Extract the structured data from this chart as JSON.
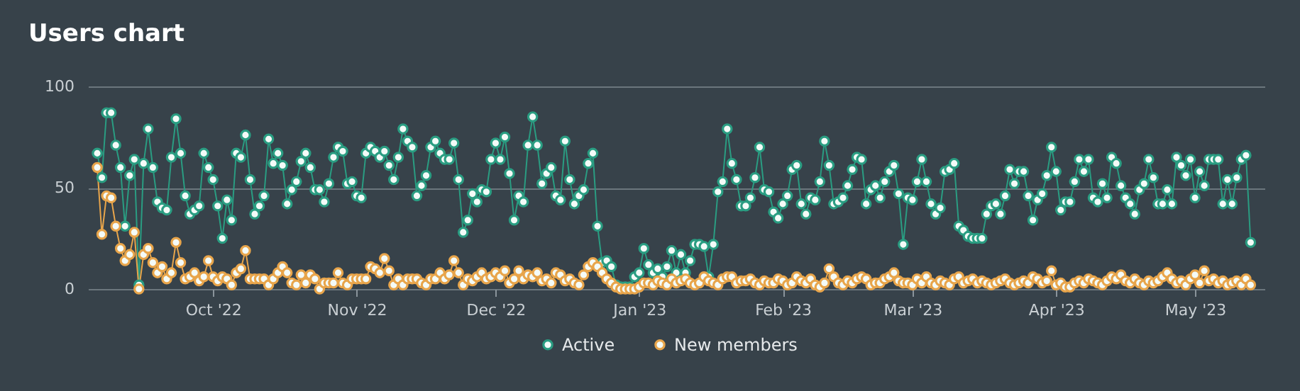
{
  "chart_data": {
    "type": "line",
    "title": "Users chart",
    "x": [
      "2022-09-06",
      "2022-09-07",
      "2022-09-08",
      "2022-09-09",
      "2022-09-10",
      "2022-09-11",
      "2022-09-12",
      "2022-09-13",
      "2022-09-14",
      "2022-09-15",
      "2022-09-16",
      "2022-09-17",
      "2022-09-18",
      "2022-09-19",
      "2022-09-20",
      "2022-09-21",
      "2022-09-22",
      "2022-09-23",
      "2022-09-24",
      "2022-09-25",
      "2022-09-26",
      "2022-09-27",
      "2022-09-28",
      "2022-09-29",
      "2022-09-30",
      "2022-10-01",
      "2022-10-02",
      "2022-10-03",
      "2022-10-04",
      "2022-10-05",
      "2022-10-06",
      "2022-10-07",
      "2022-10-08",
      "2022-10-09",
      "2022-10-10",
      "2022-10-11",
      "2022-10-12",
      "2022-10-13",
      "2022-10-14",
      "2022-10-15",
      "2022-10-16",
      "2022-10-17",
      "2022-10-18",
      "2022-10-19",
      "2022-10-20",
      "2022-10-21",
      "2022-10-22",
      "2022-10-23",
      "2022-10-24",
      "2022-10-25",
      "2022-10-26",
      "2022-10-27",
      "2022-10-28",
      "2022-10-29",
      "2022-10-30",
      "2022-10-31",
      "2022-11-01",
      "2022-11-02",
      "2022-11-03",
      "2022-11-04",
      "2022-11-05",
      "2022-11-06",
      "2022-11-07",
      "2022-11-08",
      "2022-11-09",
      "2022-11-10",
      "2022-11-11",
      "2022-11-12",
      "2022-11-13",
      "2022-11-14",
      "2022-11-15",
      "2022-11-16",
      "2022-11-17",
      "2022-11-18",
      "2022-11-19",
      "2022-11-20",
      "2022-11-21",
      "2022-11-22",
      "2022-11-23",
      "2022-11-24",
      "2022-11-25",
      "2022-11-26",
      "2022-11-27",
      "2022-11-28",
      "2022-11-29",
      "2022-11-30",
      "2022-12-01",
      "2022-12-02",
      "2022-12-03",
      "2022-12-04",
      "2022-12-05",
      "2022-12-06",
      "2022-12-07",
      "2022-12-08",
      "2022-12-09",
      "2022-12-10",
      "2022-12-11",
      "2022-12-12",
      "2022-12-13",
      "2022-12-14",
      "2022-12-15",
      "2022-12-16",
      "2022-12-17",
      "2022-12-18",
      "2022-12-19",
      "2022-12-20",
      "2022-12-21",
      "2022-12-22",
      "2022-12-23",
      "2022-12-24",
      "2022-12-25",
      "2022-12-26",
      "2022-12-27",
      "2022-12-28",
      "2022-12-29",
      "2022-12-30",
      "2022-12-31",
      "2023-01-01",
      "2023-01-02",
      "2023-01-03",
      "2023-01-04",
      "2023-01-05",
      "2023-01-06",
      "2023-01-07",
      "2023-01-08",
      "2023-01-09",
      "2023-01-10",
      "2023-01-11",
      "2023-01-12",
      "2023-01-13",
      "2023-01-14",
      "2023-01-15",
      "2023-01-16",
      "2023-01-17",
      "2023-01-18",
      "2023-01-19",
      "2023-01-20",
      "2023-01-21",
      "2023-01-22",
      "2023-01-23",
      "2023-01-24",
      "2023-01-25",
      "2023-01-26",
      "2023-01-27",
      "2023-01-28",
      "2023-01-29",
      "2023-01-30",
      "2023-01-31",
      "2023-02-01",
      "2023-02-02",
      "2023-02-03",
      "2023-02-04",
      "2023-02-05",
      "2023-02-06",
      "2023-02-07",
      "2023-02-08",
      "2023-02-09",
      "2023-02-10",
      "2023-02-11",
      "2023-02-12",
      "2023-02-13",
      "2023-02-14",
      "2023-02-15",
      "2023-02-16",
      "2023-02-17",
      "2023-02-18",
      "2023-02-19",
      "2023-02-20",
      "2023-02-21",
      "2023-02-22",
      "2023-02-23",
      "2023-02-24",
      "2023-02-25",
      "2023-02-26",
      "2023-02-27",
      "2023-02-28",
      "2023-03-01",
      "2023-03-02",
      "2023-03-03",
      "2023-03-04",
      "2023-03-05",
      "2023-03-06",
      "2023-03-07",
      "2023-03-08",
      "2023-03-09",
      "2023-03-10",
      "2023-03-11",
      "2023-03-12",
      "2023-03-13",
      "2023-03-14",
      "2023-03-15",
      "2023-03-16",
      "2023-03-17",
      "2023-03-18",
      "2023-03-19",
      "2023-03-20",
      "2023-03-21",
      "2023-03-22",
      "2023-03-23",
      "2023-03-24",
      "2023-03-25",
      "2023-03-26",
      "2023-03-27",
      "2023-03-28",
      "2023-03-29",
      "2023-03-30",
      "2023-03-31",
      "2023-04-01",
      "2023-04-02",
      "2023-04-03",
      "2023-04-04",
      "2023-04-05",
      "2023-04-06",
      "2023-04-07",
      "2023-04-08",
      "2023-04-09",
      "2023-04-10",
      "2023-04-11",
      "2023-04-12",
      "2023-04-13",
      "2023-04-14",
      "2023-04-15",
      "2023-04-16",
      "2023-04-17",
      "2023-04-18",
      "2023-04-19",
      "2023-04-20",
      "2023-04-21",
      "2023-04-22",
      "2023-04-23",
      "2023-04-24",
      "2023-04-25",
      "2023-04-26",
      "2023-04-27",
      "2023-04-28",
      "2023-04-29",
      "2023-04-30",
      "2023-05-01",
      "2023-05-02",
      "2023-05-03",
      "2023-05-04",
      "2023-05-05",
      "2023-05-06",
      "2023-05-07",
      "2023-05-08",
      "2023-05-09",
      "2023-05-10",
      "2023-05-11",
      "2023-05-12",
      "2023-05-13"
    ],
    "series": [
      {
        "name": "Active",
        "color": "#2a9d82",
        "values": [
          67,
          55,
          87,
          87,
          71,
          60,
          31,
          56,
          64,
          2,
          62,
          79,
          60,
          43,
          40,
          39,
          65,
          84,
          67,
          46,
          37,
          39,
          41,
          67,
          60,
          54,
          41,
          25,
          44,
          34,
          67,
          65,
          76,
          54,
          37,
          41,
          46,
          74,
          62,
          67,
          61,
          42,
          49,
          53,
          63,
          67,
          60,
          49,
          49,
          43,
          52,
          65,
          70,
          68,
          52,
          53,
          46,
          45,
          67,
          70,
          68,
          65,
          68,
          61,
          54,
          65,
          79,
          73,
          70,
          46,
          51,
          56,
          70,
          73,
          67,
          64,
          64,
          72,
          54,
          28,
          34,
          47,
          43,
          49,
          48,
          64,
          72,
          64,
          75,
          57,
          34,
          46,
          43,
          71,
          85,
          71,
          52,
          57,
          60,
          46,
          44,
          73,
          54,
          42,
          46,
          49,
          62,
          67,
          31,
          13,
          14,
          11,
          2,
          1,
          1,
          1,
          6,
          8,
          20,
          12,
          8,
          10,
          6,
          11,
          19,
          8,
          17,
          8,
          14,
          22,
          22,
          21,
          6,
          22,
          48,
          53,
          79,
          62,
          54,
          41,
          41,
          45,
          55,
          70,
          49,
          48,
          38,
          35,
          42,
          46,
          59,
          61,
          42,
          37,
          45,
          44,
          53,
          73,
          61,
          42,
          43,
          45,
          51,
          59,
          65,
          64,
          42,
          49,
          51,
          45,
          53,
          58,
          61,
          47,
          22,
          45,
          44,
          53,
          64,
          53,
          42,
          37,
          40,
          58,
          59,
          62,
          31,
          29,
          26,
          25,
          25,
          25,
          37,
          41,
          42,
          37,
          46,
          59,
          52,
          58,
          58,
          46,
          34,
          44,
          47,
          56,
          70,
          58,
          39,
          43,
          43,
          53,
          64,
          58,
          64,
          45,
          43,
          52,
          45,
          65,
          62,
          51,
          45,
          42,
          37,
          49,
          52,
          64,
          55,
          42,
          42,
          49,
          42,
          65,
          61,
          56,
          64,
          45,
          58,
          51,
          64,
          64,
          64,
          42,
          54,
          42,
          55,
          64,
          66,
          23
        ]
      },
      {
        "name": "New members",
        "color": "#e8a54b",
        "values": [
          60,
          27,
          46,
          45,
          31,
          20,
          14,
          17,
          28,
          0,
          17,
          20,
          13,
          8,
          11,
          5,
          8,
          23,
          13,
          5,
          6,
          8,
          4,
          6,
          14,
          6,
          4,
          6,
          5,
          2,
          8,
          10,
          19,
          5,
          5,
          5,
          5,
          2,
          5,
          8,
          11,
          8,
          3,
          2,
          7,
          3,
          7,
          5,
          0,
          3,
          3,
          3,
          8,
          3,
          2,
          5,
          5,
          5,
          5,
          11,
          10,
          8,
          15,
          9,
          2,
          5,
          2,
          5,
          5,
          5,
          3,
          2,
          5,
          5,
          8,
          5,
          7,
          14,
          8,
          2,
          5,
          4,
          6,
          8,
          5,
          6,
          8,
          6,
          9,
          3,
          5,
          9,
          5,
          7,
          6,
          8,
          4,
          5,
          3,
          8,
          7,
          4,
          5,
          3,
          2,
          7,
          11,
          13,
          11,
          8,
          5,
          3,
          1,
          0,
          0,
          0,
          0,
          1,
          3,
          3,
          2,
          4,
          3,
          2,
          5,
          3,
          4,
          5,
          3,
          2,
          3,
          6,
          4,
          3,
          2,
          5,
          6,
          6,
          3,
          4,
          4,
          5,
          3,
          2,
          4,
          3,
          3,
          5,
          4,
          2,
          3,
          6,
          4,
          3,
          5,
          2,
          1,
          3,
          10,
          6,
          3,
          2,
          4,
          3,
          5,
          6,
          5,
          2,
          3,
          3,
          5,
          6,
          8,
          4,
          3,
          3,
          2,
          5,
          3,
          6,
          3,
          2,
          4,
          3,
          2,
          5,
          6,
          3,
          4,
          5,
          3,
          4,
          3,
          2,
          3,
          4,
          5,
          3,
          2,
          3,
          4,
          3,
          6,
          5,
          3,
          4,
          9,
          2,
          3,
          1,
          1,
          3,
          4,
          3,
          5,
          4,
          3,
          2,
          4,
          6,
          5,
          7,
          4,
          3,
          5,
          3,
          2,
          4,
          3,
          4,
          6,
          8,
          5,
          3,
          4,
          2,
          5,
          7,
          3,
          9,
          4,
          5,
          3,
          4,
          2,
          3,
          4,
          2,
          5,
          2
        ]
      }
    ],
    "xlim": [
      "2022-09-04",
      "2023-05-16"
    ],
    "xticks": [
      {
        "value": "2022-10-01",
        "label": "Oct '22"
      },
      {
        "value": "2022-11-01",
        "label": "Nov '22"
      },
      {
        "value": "2022-12-01",
        "label": "Dec '22"
      },
      {
        "value": "2023-01-01",
        "label": "Jan '23"
      },
      {
        "value": "2023-02-01",
        "label": "Feb '23"
      },
      {
        "value": "2023-03-01",
        "label": "Mar '23"
      },
      {
        "value": "2023-04-01",
        "label": "Apr '23"
      },
      {
        "value": "2023-05-01",
        "label": "May '23"
      }
    ],
    "ylim": [
      0,
      100
    ],
    "yticks": [
      0,
      50,
      100
    ],
    "grid": "y",
    "legend": "bottom",
    "marker": "circle"
  }
}
